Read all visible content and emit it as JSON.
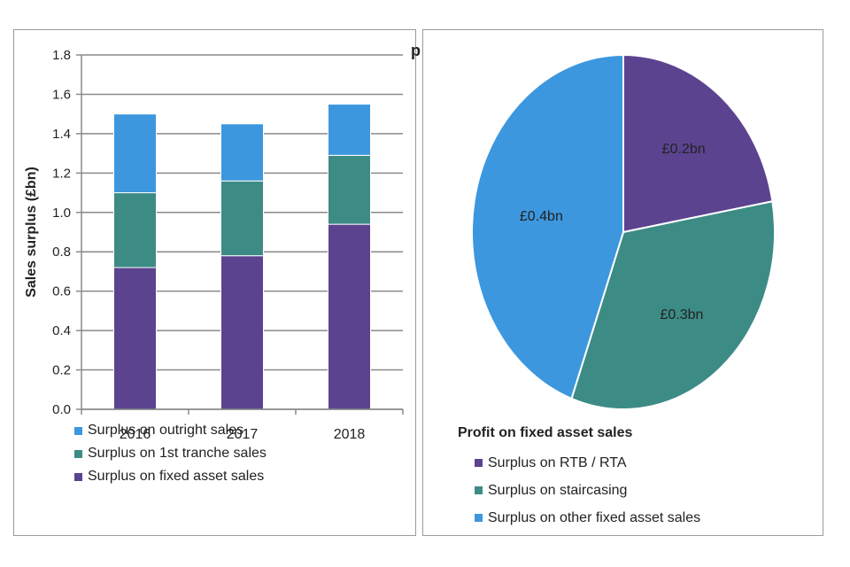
{
  "chart_data": [
    {
      "type": "bar",
      "stacked": true,
      "categories": [
        "2016",
        "2017",
        "2018"
      ],
      "series": [
        {
          "name": "Surplus on fixed asset sales",
          "values": [
            0.72,
            0.78,
            0.94
          ],
          "color": "#5b4390"
        },
        {
          "name": "Surplus on 1st tranche sales",
          "values": [
            0.38,
            0.38,
            0.35
          ],
          "color": "#3d8b85"
        },
        {
          "name": "Surplus on outright sales",
          "values": [
            0.4,
            0.29,
            0.26
          ],
          "color": "#3d97de"
        }
      ],
      "legend_order": [
        2,
        1,
        0
      ],
      "ylabel": "Sales surplus (£bn)",
      "xlabel": "",
      "ylim": [
        0,
        1.8
      ],
      "yticks": [
        "0.0",
        "0.2",
        "0.4",
        "0.6",
        "0.8",
        "1.0",
        "1.2",
        "1.4",
        "1.6",
        "1.8"
      ],
      "grid": true,
      "legend_position": "bottom"
    },
    {
      "type": "pie",
      "title": "Profit on fixed asset sales",
      "slices": [
        {
          "name": "Surplus on RTB / RTA",
          "value": 0.2,
          "label": "£0.2bn",
          "color": "#5b4390"
        },
        {
          "name": "Surplus on staircasing",
          "value": 0.3,
          "label": "£0.3bn",
          "color": "#3d8b85"
        },
        {
          "name": "Surplus on other fixed asset sales",
          "value": 0.4,
          "label": "£0.4bn",
          "color": "#3d97de"
        }
      ],
      "legend_position": "bottom"
    }
  ],
  "stray_text": "p"
}
